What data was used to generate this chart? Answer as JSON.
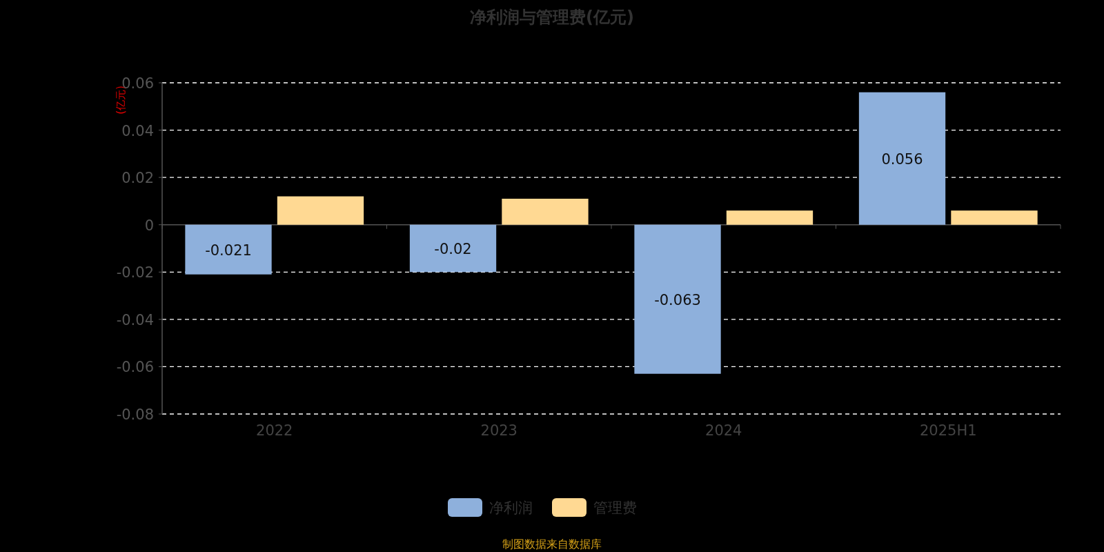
{
  "chart_data": {
    "type": "bar",
    "title": "净利润与管理费(亿元)",
    "ylabel": "(亿元)",
    "categories": [
      "2022",
      "2023",
      "2024",
      "2025H1"
    ],
    "series": [
      {
        "name": "净利润",
        "color": "#8eb0dc",
        "values": [
          -0.021,
          -0.02,
          -0.063,
          0.056
        ],
        "value_labels": [
          "-0.021",
          "-0.02",
          "-0.063",
          "0.056"
        ]
      },
      {
        "name": "管理费",
        "color": "#ffd993",
        "values": [
          0.012,
          0.011,
          0.006,
          0.006
        ]
      }
    ],
    "ylim": [
      -0.08,
      0.06
    ],
    "yticks": [
      -0.08,
      -0.06,
      -0.04,
      -0.02,
      0,
      0.02,
      0.04,
      0.06
    ],
    "grid": "y",
    "legend": "bottom",
    "annotations": [
      "制图数据来自数据库"
    ]
  }
}
